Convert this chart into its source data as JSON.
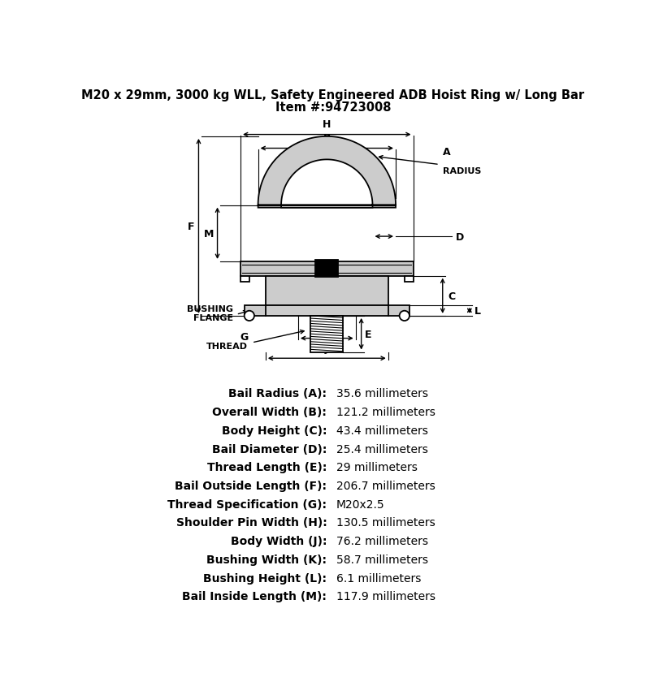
{
  "title_line1": "M20 x 29mm, 3000 kg WLL, Safety Engineered ADB Hoist Ring w/ Long Bar",
  "title_line2": "Item #:94723008",
  "specs": [
    {
      "label": "Bail Radius (A):",
      "value": "35.6 millimeters"
    },
    {
      "label": "Overall Width (B):",
      "value": "121.2 millimeters"
    },
    {
      "label": "Body Height (C):",
      "value": "43.4 millimeters"
    },
    {
      "label": "Bail Diameter (D):",
      "value": "25.4 millimeters"
    },
    {
      "label": "Thread Length (E):",
      "value": "29 millimeters"
    },
    {
      "label": "Bail Outside Length (F):",
      "value": "206.7 millimeters"
    },
    {
      "label": "Thread Specification (G):",
      "value": "M20x2.5"
    },
    {
      "label": "Shoulder Pin Width (H):",
      "value": "130.5 millimeters"
    },
    {
      "label": "Body Width (J):",
      "value": "76.2 millimeters"
    },
    {
      "label": "Bushing Width (K):",
      "value": "58.7 millimeters"
    },
    {
      "label": "Bushing Height (L):",
      "value": "6.1 millimeters"
    },
    {
      "label": "Bail Inside Length (M):",
      "value": "117.9 millimeters"
    }
  ],
  "bg_color": "#ffffff",
  "line_color": "#000000"
}
